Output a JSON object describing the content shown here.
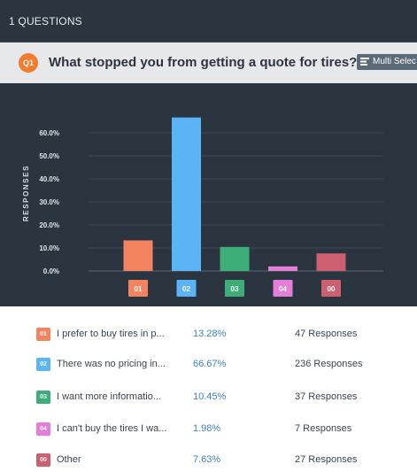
{
  "header": {
    "title": "1 QUESTIONS"
  },
  "question": {
    "badge": "Q1",
    "text": "What stopped you from getting a quote for tires?",
    "type_label": "Multi Selec",
    "type_icon": "list-icon"
  },
  "chart_data": {
    "type": "bar",
    "ylabel": "RESPONSES",
    "ylim": [
      0,
      70
    ],
    "yticks": [
      "0.0%",
      "10.0%",
      "20.0%",
      "30.0%",
      "40.0%",
      "50.0%",
      "60.0%"
    ],
    "categories": [
      "01",
      "02",
      "03",
      "04",
      "00"
    ],
    "values": [
      13.28,
      66.67,
      10.45,
      1.98,
      7.63
    ],
    "colors": [
      "#f4845f",
      "#5ab4f5",
      "#3dae78",
      "#e57ed8",
      "#cc5f70"
    ],
    "grid": true
  },
  "legend": {
    "items": [
      {
        "code": "01",
        "label": "I prefer to buy tires in p...",
        "pct": "13.28%",
        "responses": "47 Responses",
        "color": "#f4845f"
      },
      {
        "code": "02",
        "label": "There was no pricing in...",
        "pct": "66.67%",
        "responses": "236 Responses",
        "color": "#5ab4f5"
      },
      {
        "code": "03",
        "label": "I want more informatio...",
        "pct": "10.45%",
        "responses": "37 Responses",
        "color": "#3dae78"
      },
      {
        "code": "04",
        "label": "I can't buy the tires I wa...",
        "pct": "1.98%",
        "responses": "7 Responses",
        "color": "#e57ed8"
      },
      {
        "code": "00",
        "label": "Other",
        "pct": "7.63%",
        "responses": "27 Responses",
        "color": "#cc5f70"
      }
    ]
  }
}
